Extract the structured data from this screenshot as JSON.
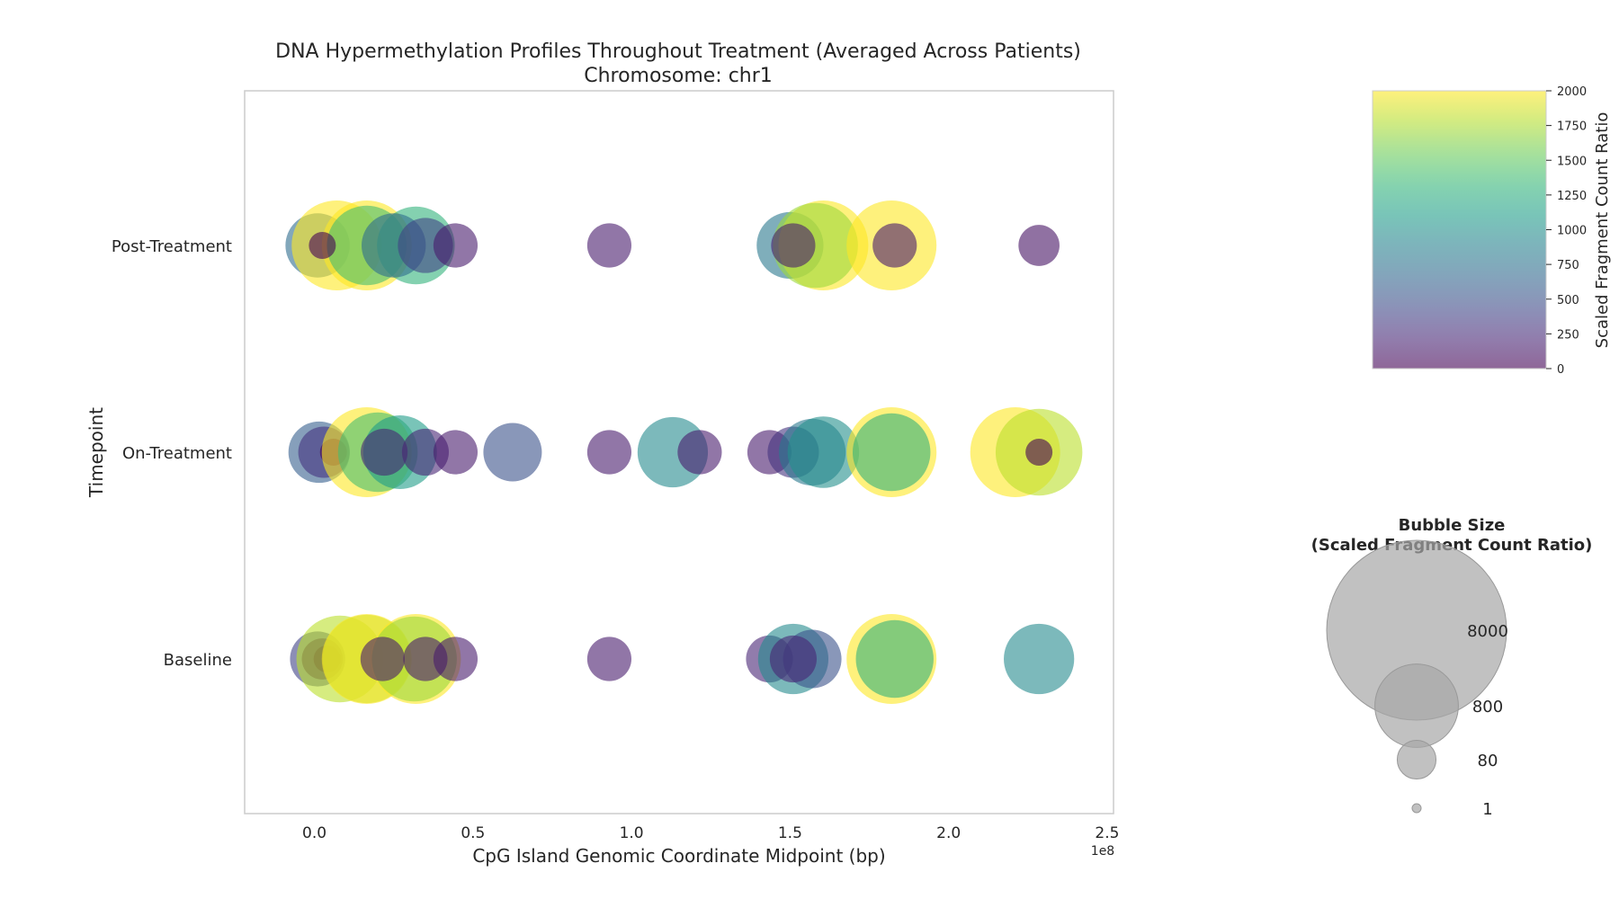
{
  "chart_data": {
    "type": "scatter",
    "title": "DNA Hypermethylation Profiles Throughout Treatment (Averaged Across Patients)",
    "subtitle": "Chromosome: chr1",
    "xlabel": "CpG Island Genomic Coordinate Midpoint (bp)",
    "ylabel": "Timepoint",
    "x_offset_label": "1e8",
    "xlim": [
      -22000000,
      252000000
    ],
    "x_ticks": [
      0,
      50000000,
      100000000,
      150000000,
      200000000,
      250000000
    ],
    "x_tick_labels": [
      "0.0",
      "0.5",
      "1.0",
      "1.5",
      "2.0",
      "2.5"
    ],
    "y_categories": [
      "Baseline",
      "On-Treatment",
      "Post-Treatment"
    ],
    "grid": false,
    "colorbar": {
      "label": "Scaled Fragment Count Ratio",
      "colormap": "viridis",
      "alpha": 0.6,
      "range": [
        0,
        2000
      ],
      "ticks": [
        0,
        250,
        500,
        750,
        1000,
        1250,
        1500,
        1750,
        2000
      ],
      "tick_labels": [
        "0",
        "250",
        "500",
        "750",
        "1000",
        "1250",
        "1500",
        "1750",
        "2000"
      ]
    },
    "size_legend": {
      "title_line1": "Bubble Size",
      "title_line2": "(Scaled Fragment Count Ratio)",
      "entries": [
        {
          "label": "8000",
          "value": 8000
        },
        {
          "label": "800",
          "value": 800
        },
        {
          "label": "80",
          "value": 80
        },
        {
          "label": "1",
          "value": 1
        }
      ]
    },
    "series": [
      {
        "timepoint": "Post-Treatment",
        "points": [
          {
            "x": 1000000,
            "value": 700
          },
          {
            "x": 7000000,
            "value": 2000
          },
          {
            "x": 16500000,
            "value": 2000
          },
          {
            "x": 32000000,
            "value": 1300
          },
          {
            "x": 16500000,
            "value": 1400
          },
          {
            "x": 25000000,
            "value": 700
          },
          {
            "x": 35000000,
            "value": 400
          },
          {
            "x": 44500000,
            "value": 150
          },
          {
            "x": 2500000,
            "value": 0
          },
          {
            "x": 93000000,
            "value": 150
          },
          {
            "x": 150000000,
            "value": 800
          },
          {
            "x": 160500000,
            "value": 2000
          },
          {
            "x": 158000000,
            "value": 1700
          },
          {
            "x": 182000000,
            "value": 2000
          },
          {
            "x": 151000000,
            "value": 150
          },
          {
            "x": 183000000,
            "value": 150
          },
          {
            "x": 228500000,
            "value": 100
          }
        ]
      },
      {
        "timepoint": "On-Treatment",
        "points": [
          {
            "x": 1500000,
            "value": 600
          },
          {
            "x": 3000000,
            "value": 300
          },
          {
            "x": 6000000,
            "value": 0
          },
          {
            "x": 16500000,
            "value": 2000
          },
          {
            "x": 20000000,
            "value": 1400
          },
          {
            "x": 27000000,
            "value": 1100
          },
          {
            "x": 22000000,
            "value": 200
          },
          {
            "x": 35000000,
            "value": 200
          },
          {
            "x": 44500000,
            "value": 150
          },
          {
            "x": 62500000,
            "value": 500
          },
          {
            "x": 93000000,
            "value": 150
          },
          {
            "x": 113000000,
            "value": 950
          },
          {
            "x": 121500000,
            "value": 150
          },
          {
            "x": 143500000,
            "value": 150
          },
          {
            "x": 151000000,
            "value": 300
          },
          {
            "x": 157000000,
            "value": 800
          },
          {
            "x": 160500000,
            "value": 1000
          },
          {
            "x": 182000000,
            "value": 2000
          },
          {
            "x": 182000000,
            "value": 1300
          },
          {
            "x": 221000000,
            "value": 2000
          },
          {
            "x": 228500000,
            "value": 1800
          },
          {
            "x": 228500000,
            "value": 0
          }
        ]
      },
      {
        "timepoint": "Baseline",
        "points": [
          {
            "x": 1000000,
            "value": 400
          },
          {
            "x": 2500000,
            "value": 100
          },
          {
            "x": 4000000,
            "value": 0
          },
          {
            "x": 8000000,
            "value": 1800
          },
          {
            "x": 16500000,
            "value": 2000
          },
          {
            "x": 16500000,
            "value": 1900
          },
          {
            "x": 32000000,
            "value": 2000
          },
          {
            "x": 31500000,
            "value": 1700
          },
          {
            "x": 21500000,
            "value": 150
          },
          {
            "x": 35000000,
            "value": 150
          },
          {
            "x": 44500000,
            "value": 150
          },
          {
            "x": 93000000,
            "value": 150
          },
          {
            "x": 143500000,
            "value": 200
          },
          {
            "x": 151000000,
            "value": 950
          },
          {
            "x": 157000000,
            "value": 500
          },
          {
            "x": 151000000,
            "value": 200
          },
          {
            "x": 182000000,
            "value": 2000
          },
          {
            "x": 183000000,
            "value": 1300
          },
          {
            "x": 228500000,
            "value": 950
          }
        ]
      }
    ]
  }
}
